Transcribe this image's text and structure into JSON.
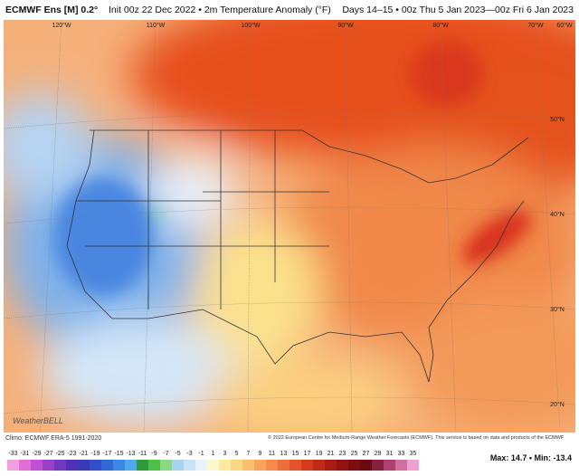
{
  "header": {
    "model": "ECMWF Ens [M] 0.2°",
    "info": "Init 00z 22 Dec 2022 • 2m Temperature Anomaly (°F)",
    "valid": "Days 14–15 • 00z Thu 5 Jan 2023—00z Fri 6 Jan 2023"
  },
  "map": {
    "lon_labels": [
      "120°W",
      "110°W",
      "100°W",
      "90°W",
      "80°W",
      "70°W",
      "60°W"
    ],
    "lat_labels": [
      "50°N",
      "40°N",
      "30°N",
      "20°N"
    ],
    "logo": "WeatherBELL"
  },
  "footer": {
    "climo": "Climo: ECMWF ERA-5 1991-2020",
    "copyright": "© 2022 European Centre for Medium-Range Weather Forecasts (ECMWF). This service is based on data and products of the ECMWF",
    "stats": "Max: 14.7 • Min: -13.4"
  },
  "colorbar": {
    "labels": [
      -33,
      -31,
      -29,
      -27,
      -25,
      -23,
      -21,
      -19,
      -17,
      -15,
      -13,
      -11,
      -9,
      -7,
      -5,
      -3,
      -1,
      1,
      3,
      5,
      7,
      9,
      11,
      13,
      15,
      17,
      19,
      21,
      23,
      25,
      27,
      29,
      31,
      33,
      35
    ]
  }
}
